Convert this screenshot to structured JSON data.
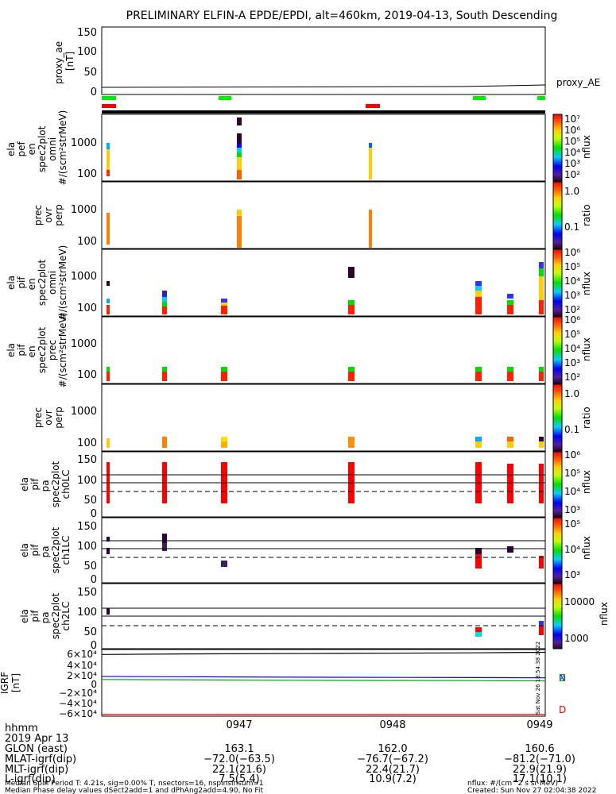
{
  "title": "PRELIMINARY ELFIN-A EPDE/EPDI, alt=460km, 2019-04-13, South Descending",
  "time_labels": [
    "0947",
    "0948",
    "0949"
  ],
  "footer": {
    "rows": [
      {
        "label": "hhmm",
        "values": [
          "",
          "",
          ""
        ]
      },
      {
        "label": "2019 Apr 13",
        "values": [
          "",
          "",
          ""
        ]
      },
      {
        "label": "GLON (east)",
        "values": [
          "163.1",
          "162.0",
          "160.6"
        ]
      },
      {
        "label": "MLAT-igrf(dip)",
        "values": [
          "−72.0(−63.5)",
          "−76.7(−67.2)",
          "−81.2(−71.0)"
        ]
      },
      {
        "label": "MLT-igrf(dip)",
        "values": [
          "22.1(21.6)",
          "22.4(21.7)",
          "22.9(21.9)"
        ]
      },
      {
        "label": "L-igrf(dip)",
        "values": [
          "7.5(5.4)",
          "10.9(7.2)",
          "17.1(10.1)"
        ]
      }
    ],
    "note1": "Median Spin Period T: 4.21s, sig=0.00% T, nsectors=16, nspinsinsum=1",
    "note2": "Median Phase delay values dSect2add=1 and dPhAng2add=4.90, No Fit",
    "units": "nflux: #/(cm^2 s sr MeV)",
    "created": "Created: Sun Nov 27 02:04:38 2022",
    "side_stamp": "Sat Nov 26 18:54:38 2022"
  },
  "chart_data": [
    {
      "type": "line",
      "panel": "proxy_ae",
      "ylabel": "proxy_ae\n[nT]",
      "yticks": [
        "150",
        "100",
        "50",
        "0"
      ],
      "ylim": [
        0,
        150
      ],
      "legend": "proxy_AE",
      "series": [
        {
          "name": "proxy_AE",
          "x": [
            0,
            2.85
          ],
          "y": [
            13,
            15
          ]
        }
      ]
    },
    {
      "type": "heatmap",
      "panel": "ela_pef_en_spec2plot_omni",
      "ylabel": "ela\npef\nen\nspec2plot\nomni\n#/(scm²strMeV)",
      "yticks": [
        "1000",
        "100"
      ],
      "colorbar_label": "nflux",
      "colorbar_ticks": [
        "10⁷",
        "10⁶",
        "10⁵",
        "10⁴",
        "10³",
        "10²"
      ]
    },
    {
      "type": "heatmap",
      "panel": "prec_ovr_perp_e",
      "ylabel": "prec\novr\nperp",
      "yticks": [
        "1000",
        "100"
      ],
      "colorbar_label": "ratio",
      "colorbar_ticks": [
        "1.0",
        "0.1"
      ]
    },
    {
      "type": "heatmap",
      "panel": "ela_pif_en_spec2plot_omni",
      "ylabel": "ela\npif\nen\nspec2plot\nomni\n#/(scm²strMeV)",
      "yticks": [
        "1000",
        "100"
      ],
      "colorbar_label": "nflux",
      "colorbar_ticks": [
        "10⁶",
        "10⁵",
        "10⁴",
        "10³",
        "10²"
      ]
    },
    {
      "type": "heatmap",
      "panel": "ela_pif_en_spec2plot_prec",
      "ylabel": "ela\npif\nen\nspec2plot\nprec\n#/(scm²strMeV)",
      "yticks": [
        "1000",
        "100"
      ],
      "colorbar_label": "nflux",
      "colorbar_ticks": [
        "10⁶",
        "10⁵",
        "10⁴",
        "10³",
        "10²"
      ]
    },
    {
      "type": "heatmap",
      "panel": "prec_ovr_perp_i",
      "ylabel": "prec\novr\nperp",
      "yticks": [
        "1000",
        "100"
      ],
      "colorbar_label": "ratio",
      "colorbar_ticks": [
        "1.0",
        "0.1"
      ]
    },
    {
      "type": "heatmap",
      "panel": "ela_pif_pa_spec2plot_ch0LC",
      "ylabel": "ela\npif\npa\nspec2plot\nch0LC",
      "yticks": [
        "150",
        "100",
        "50",
        "0"
      ],
      "colorbar_label": "nflux",
      "colorbar_ticks": [
        "10⁶",
        "10⁵",
        "10⁴",
        "10³"
      ]
    },
    {
      "type": "heatmap",
      "panel": "ela_pif_pa_spec2plot_ch1LC",
      "ylabel": "ela\npif\npa\nspec2plot\nch1LC",
      "yticks": [
        "150",
        "100",
        "50",
        "0"
      ],
      "colorbar_label": "nflux",
      "colorbar_ticks": [
        "10⁵",
        "10⁴",
        "10³"
      ]
    },
    {
      "type": "heatmap",
      "panel": "ela_pif_pa_spec2plot_ch2LC",
      "ylabel": "ela\npif\npa\nspec2plot\nch2LC",
      "yticks": [
        "150",
        "100",
        "50",
        "0"
      ],
      "colorbar_label": "nflux",
      "colorbar_ticks": [
        "10000",
        "1000"
      ]
    },
    {
      "type": "line",
      "panel": "IGRF",
      "ylabel": "IGRF\n[nT]",
      "yticks": [
        "6×10⁴",
        "4×10⁴",
        "2×10⁴",
        "0",
        "−2×10⁴",
        "−4×10⁴",
        "−6×10⁴"
      ],
      "ylim": [
        -60000,
        60000
      ],
      "series": [
        {
          "name": "N",
          "color": "#0000ff",
          "x": [
            0,
            0.5,
            1.5,
            2.4,
            2.85
          ],
          "y": [
            11500,
            11000,
            10000,
            9500,
            9000
          ]
        },
        {
          "name": "Z",
          "color": "#00aa00",
          "x": [
            0,
            0.5,
            1.5,
            2.4,
            2.85
          ],
          "y": [
            6000,
            5500,
            4500,
            4000,
            3500
          ]
        },
        {
          "name": "D",
          "color": "#ff0000",
          "x": [
            0,
            2.85
          ],
          "y": [
            -57000,
            -57000
          ]
        },
        {
          "name": "",
          "color": "#000000",
          "x": [
            0,
            0.5,
            1.5,
            2.4,
            2.85
          ],
          "y": [
            51000,
            52000,
            53000,
            54000,
            55000
          ]
        }
      ]
    }
  ]
}
